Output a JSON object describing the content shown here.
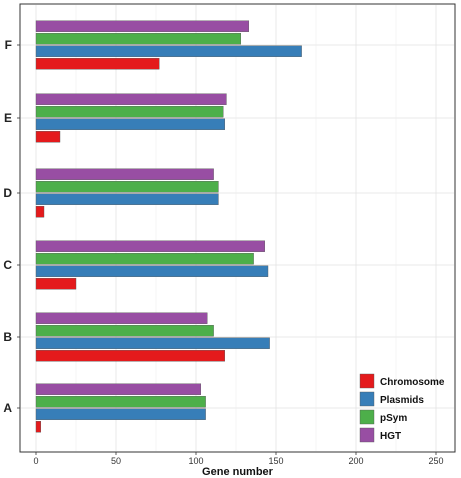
{
  "chart_data": {
    "type": "bar",
    "orientation": "horizontal",
    "categories": [
      "A",
      "B",
      "C",
      "D",
      "E",
      "F"
    ],
    "series": [
      {
        "name": "Chromosome",
        "color": "#e41a1c",
        "values": [
          3,
          118,
          25,
          5,
          15,
          77
        ]
      },
      {
        "name": "Plasmids",
        "color": "#377eb8",
        "values": [
          106,
          146,
          145,
          114,
          118,
          166
        ]
      },
      {
        "name": "pSym",
        "color": "#4daf4a",
        "values": [
          106,
          111,
          136,
          114,
          117,
          128
        ]
      },
      {
        "name": "HGT",
        "color": "#984ea3",
        "values": [
          103,
          107,
          143,
          111,
          119,
          133
        ]
      }
    ],
    "xlabel": "Gene number",
    "ylabel": "",
    "title": "",
    "xlim": [
      0,
      260
    ],
    "xticks": [
      0,
      50,
      100,
      150,
      200,
      250
    ],
    "grid": true,
    "legend_position": "bottom-right"
  }
}
